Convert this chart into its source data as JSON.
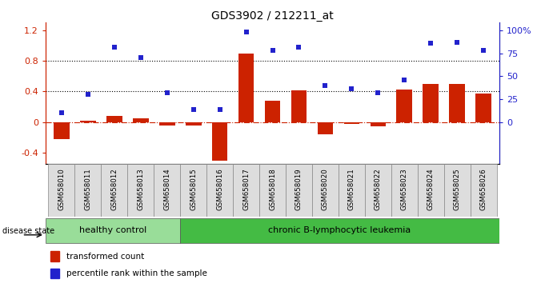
{
  "title": "GDS3902 / 212211_at",
  "samples": [
    "GSM658010",
    "GSM658011",
    "GSM658012",
    "GSM658013",
    "GSM658014",
    "GSM658015",
    "GSM658016",
    "GSM658017",
    "GSM658018",
    "GSM658019",
    "GSM658020",
    "GSM658021",
    "GSM658022",
    "GSM658023",
    "GSM658024",
    "GSM658025",
    "GSM658026"
  ],
  "transformed_count": [
    -0.22,
    0.02,
    0.08,
    0.05,
    -0.04,
    -0.05,
    -0.5,
    0.9,
    0.28,
    0.42,
    -0.16,
    -0.02,
    -0.06,
    0.43,
    0.5,
    0.5,
    0.37
  ],
  "percentile_rank_pct": [
    10,
    30,
    82,
    70,
    32,
    14,
    14,
    98,
    78,
    82,
    40,
    36,
    32,
    46,
    86,
    87,
    78
  ],
  "left_yticks": [
    -0.4,
    0.0,
    0.4,
    0.8,
    1.2
  ],
  "left_yticklabels": [
    "-0.4",
    "0",
    "0.4",
    "0.8",
    "1.2"
  ],
  "ylim_left": [
    -0.55,
    1.3
  ],
  "right_yticks_pct": [
    0,
    25,
    50,
    75,
    100
  ],
  "hline_y": [
    0.4,
    0.8
  ],
  "bar_color": "#cc2200",
  "dot_color": "#2222cc",
  "healthy_color": "#99dd99",
  "leukemia_color": "#44bb44",
  "group_label_healthy": "healthy control",
  "group_label_leukemia": "chronic B-lymphocytic leukemia",
  "disease_state_label": "disease state",
  "legend_bar_label": "transformed count",
  "legend_dot_label": "percentile rank within the sample",
  "right_axis_color": "#2222cc",
  "left_axis_color": "#cc2200",
  "n_healthy": 5,
  "n_leukemia": 12
}
